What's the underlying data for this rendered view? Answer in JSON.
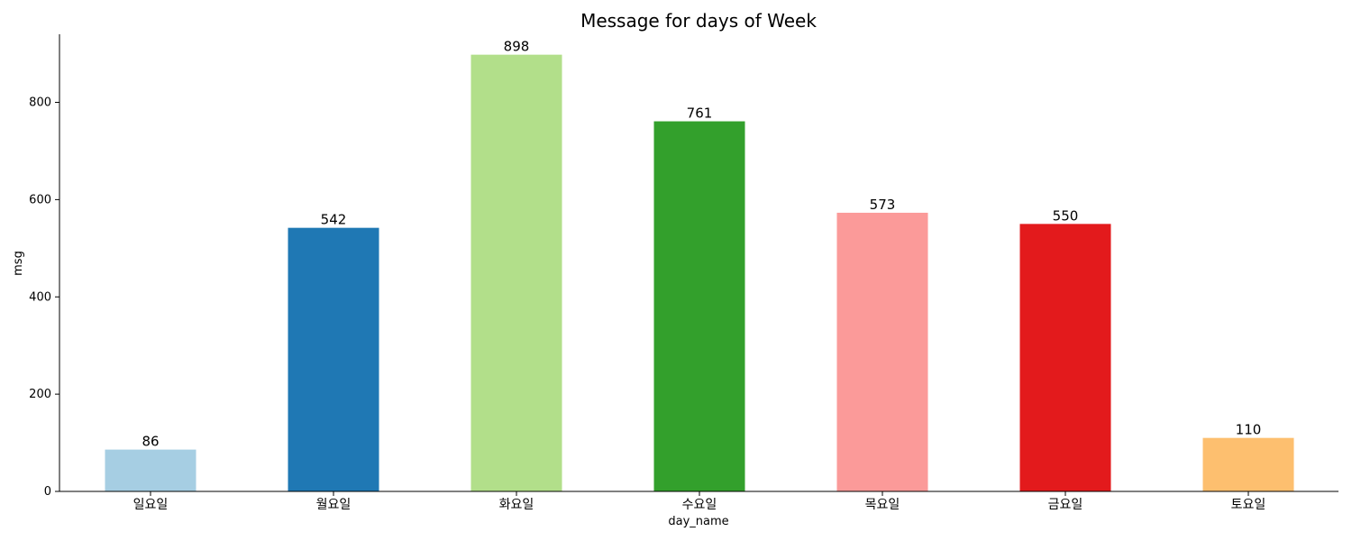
{
  "chart_data": {
    "type": "bar",
    "title": "Message for days of Week",
    "xlabel": "day_name",
    "ylabel": "msg",
    "categories": [
      "일요일",
      "월요일",
      "화요일",
      "수요일",
      "목요일",
      "금요일",
      "토요일"
    ],
    "values": [
      86,
      542,
      898,
      761,
      573,
      550,
      110
    ],
    "colors": [
      "#a6cee3",
      "#1f78b4",
      "#b2df8a",
      "#33a02c",
      "#fb9a99",
      "#e31a1c",
      "#fdbf6f"
    ],
    "ylim": [
      0,
      940
    ],
    "yticks": [
      0,
      200,
      400,
      600,
      800
    ],
    "grid": false,
    "legend": "none",
    "data_labels": true
  }
}
